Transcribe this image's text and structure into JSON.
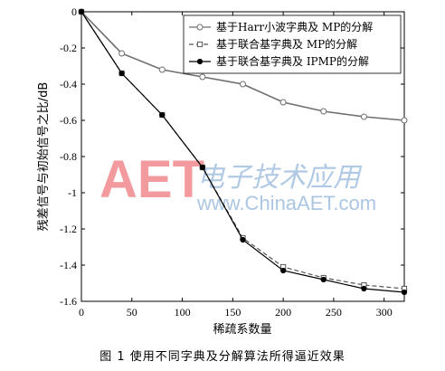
{
  "chart_data": {
    "type": "line",
    "ylabel": "残差信号与初始信号之比/dB",
    "xlabel": "稀疏系数量",
    "xlim": [
      0,
      320
    ],
    "ylim": [
      -1.6,
      0
    ],
    "xticks": [
      0,
      50,
      100,
      150,
      200,
      250,
      300
    ],
    "yticks": [
      0,
      -0.2,
      -0.4,
      -0.6,
      -0.8,
      -1,
      -1.2,
      -1.4,
      -1.6
    ],
    "xtick_labels": [
      "0",
      "50",
      "100",
      "150",
      "200",
      "250",
      "300"
    ],
    "ytick_labels": [
      "0",
      "-0.2",
      "-0.4",
      "-0.6",
      "-0.8",
      "-1",
      "-1.2",
      "-1.4",
      "-1.6"
    ],
    "grid": false,
    "legend_position": "top-right",
    "x": [
      0,
      40,
      80,
      120,
      160,
      200,
      240,
      280,
      320
    ],
    "series": [
      {
        "name": "基于Harr小波字典及 MP的分解",
        "values": [
          0,
          -0.23,
          -0.32,
          -0.36,
          -0.4,
          -0.5,
          -0.55,
          -0.58,
          -0.6
        ],
        "color": "#6e6e6e",
        "marker": "open-circle",
        "dash": "solid"
      },
      {
        "name": "基于联合基字典及 MP的分解",
        "values": [
          0,
          -0.34,
          -0.57,
          -0.86,
          -1.25,
          -1.41,
          -1.47,
          -1.51,
          -1.53
        ],
        "color": "#555555",
        "marker": "open-square",
        "dash": "dashed"
      },
      {
        "name": "基于联合基字典及 IPMP的分解",
        "values": [
          0,
          -0.34,
          -0.57,
          -0.86,
          -1.26,
          -1.43,
          -1.48,
          -1.53,
          -1.55
        ],
        "color": "#000000",
        "marker": "filled-dot",
        "dash": "solid"
      }
    ]
  },
  "watermark": {
    "logo": "AET",
    "chinese": "电子技术应用",
    "url": "www.ChinaAET.com"
  },
  "caption": "图 1   使用不同字典及分解算法所得逼近效果"
}
